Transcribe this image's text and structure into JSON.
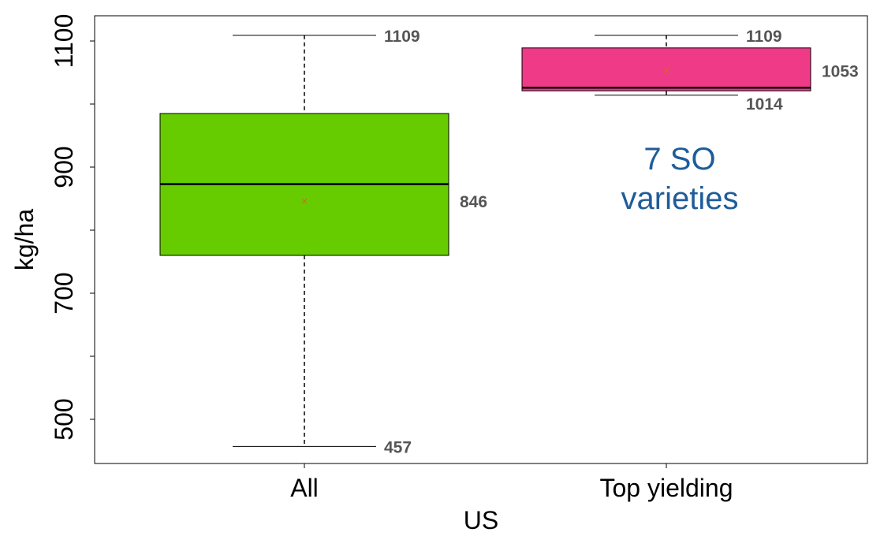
{
  "chart_data": {
    "type": "box",
    "xlabel": "US",
    "ylabel": "kg/ha",
    "ylim": [
      430,
      1140
    ],
    "y_ticks": [
      500,
      700,
      900,
      1100
    ],
    "y_minor_ticks": [
      600,
      800,
      1000
    ],
    "grid": false,
    "categories": [
      "All",
      "Top yielding"
    ],
    "boxes": [
      {
        "category": "All",
        "whisker_low": 457,
        "q1": 760,
        "median": 873,
        "q3": 985,
        "whisker_high": 1109,
        "mean": 846,
        "color": "#66CC00",
        "labels": {
          "high": "1109",
          "mean": "846",
          "low": "457"
        }
      },
      {
        "category": "Top yielding",
        "whisker_low": 1014,
        "q1": 1021,
        "median": 1026,
        "q3": 1089,
        "whisker_high": 1109,
        "mean": 1053,
        "color": "#EE3A87",
        "labels": {
          "high": "1109",
          "mean": "1053",
          "low": "1014"
        }
      }
    ],
    "annotation": {
      "lines": [
        "7 SO",
        "varieties"
      ],
      "color": "#1F5C99"
    }
  }
}
